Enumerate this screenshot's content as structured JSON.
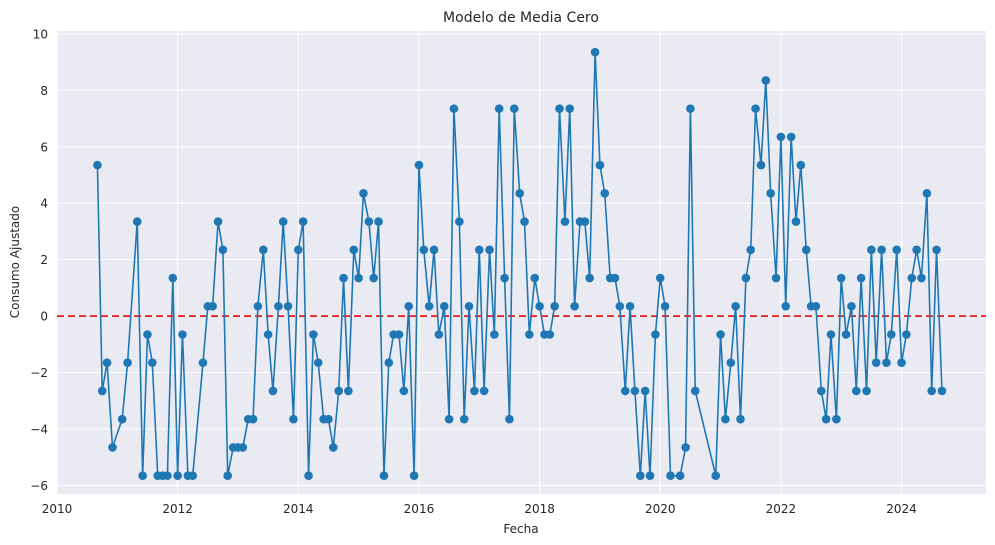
{
  "chart_data": {
    "type": "line",
    "title": "Modelo de Media Cero",
    "xlabel": "Fecha",
    "ylabel": "Consumo Ajustado",
    "xlim": [
      2010.0,
      2025.4
    ],
    "ylim": [
      -6.3,
      10.1
    ],
    "x_ticks": [
      2010,
      2012,
      2014,
      2016,
      2018,
      2020,
      2022,
      2024
    ],
    "x_tick_labels": [
      "2010",
      "2012",
      "2014",
      "2016",
      "2018",
      "2020",
      "2022",
      "2024"
    ],
    "y_ticks": [
      -6,
      -4,
      -2,
      0,
      2,
      4,
      6,
      8,
      10
    ],
    "y_tick_labels": [
      "−6",
      "−4",
      "−2",
      "0",
      "2",
      "4",
      "6",
      "8",
      "10"
    ],
    "grid": true,
    "reference_line": {
      "y": 0,
      "style": "dashed",
      "color": "#e8191b"
    },
    "series": [
      {
        "color": "#1f77b4",
        "marker": "circle",
        "x": [
          2010.67,
          2010.75,
          2010.83,
          2010.92,
          2011.08,
          2011.17,
          2011.33,
          2011.42,
          2011.5,
          2011.58,
          2011.67,
          2011.75,
          2011.83,
          2011.92,
          2012.0,
          2012.08,
          2012.17,
          2012.25,
          2012.42,
          2012.5,
          2012.58,
          2012.67,
          2012.75,
          2012.83,
          2012.92,
          2013.0,
          2013.08,
          2013.17,
          2013.25,
          2013.33,
          2013.42,
          2013.5,
          2013.58,
          2013.67,
          2013.75,
          2013.83,
          2013.92,
          2014.0,
          2014.08,
          2014.17,
          2014.25,
          2014.33,
          2014.42,
          2014.5,
          2014.58,
          2014.67,
          2014.75,
          2014.83,
          2014.92,
          2015.0,
          2015.08,
          2015.17,
          2015.25,
          2015.33,
          2015.42,
          2015.5,
          2015.58,
          2015.67,
          2015.75,
          2015.83,
          2015.92,
          2016.0,
          2016.08,
          2016.17,
          2016.25,
          2016.33,
          2016.42,
          2016.5,
          2016.58,
          2016.67,
          2016.75,
          2016.83,
          2016.92,
          2017.0,
          2017.08,
          2017.17,
          2017.25,
          2017.33,
          2017.42,
          2017.5,
          2017.58,
          2017.67,
          2017.75,
          2017.83,
          2017.92,
          2018.0,
          2018.08,
          2018.17,
          2018.25,
          2018.33,
          2018.42,
          2018.5,
          2018.58,
          2018.67,
          2018.75,
          2018.83,
          2018.92,
          2019.0,
          2019.08,
          2019.17,
          2019.25,
          2019.33,
          2019.42,
          2019.5,
          2019.58,
          2019.67,
          2019.75,
          2019.83,
          2019.92,
          2020.0,
          2020.08,
          2020.17,
          2020.33,
          2020.42,
          2020.5,
          2020.58,
          2020.92,
          2021.0,
          2021.08,
          2021.17,
          2021.25,
          2021.33,
          2021.42,
          2021.5,
          2021.58,
          2021.67,
          2021.75,
          2021.83,
          2021.92,
          2022.0,
          2022.08,
          2022.17,
          2022.25,
          2022.33,
          2022.42,
          2022.5,
          2022.58,
          2022.67,
          2022.75,
          2022.83,
          2022.92,
          2023.0,
          2023.08,
          2023.17,
          2023.25,
          2023.33,
          2023.42,
          2023.5,
          2023.58,
          2023.67,
          2023.75,
          2023.83,
          2023.92,
          2024.0,
          2024.08,
          2024.17,
          2024.25,
          2024.33,
          2024.42,
          2024.5,
          2024.58,
          2024.67
        ],
        "y": [
          5.35,
          -2.65,
          -1.65,
          -4.65,
          -3.65,
          -1.65,
          3.35,
          -5.65,
          -0.65,
          -1.65,
          -5.65,
          -5.65,
          -5.65,
          1.35,
          -5.65,
          -0.65,
          -5.65,
          -5.65,
          -1.65,
          0.35,
          0.35,
          3.35,
          2.35,
          -5.65,
          -4.65,
          -4.65,
          -4.65,
          -3.65,
          -3.65,
          0.35,
          2.35,
          -0.65,
          -2.65,
          0.35,
          3.35,
          0.35,
          -3.65,
          2.35,
          3.35,
          -5.65,
          -0.65,
          -1.65,
          -3.65,
          -3.65,
          -4.65,
          -2.65,
          1.35,
          -2.65,
          2.35,
          1.35,
          4.35,
          3.35,
          1.35,
          3.35,
          -5.65,
          -1.65,
          -0.65,
          -0.65,
          -2.65,
          0.35,
          -5.65,
          5.35,
          2.35,
          0.35,
          2.35,
          -0.65,
          0.35,
          -3.65,
          7.35,
          3.35,
          -3.65,
          0.35,
          -2.65,
          2.35,
          -2.65,
          2.35,
          -0.65,
          7.35,
          1.35,
          -3.65,
          7.35,
          4.35,
          3.35,
          -0.65,
          1.35,
          0.35,
          -0.65,
          -0.65,
          0.35,
          7.35,
          3.35,
          7.35,
          0.35,
          3.35,
          3.35,
          1.35,
          9.35,
          5.35,
          4.35,
          1.35,
          1.35,
          0.35,
          -2.65,
          0.35,
          -2.65,
          -5.65,
          -2.65,
          -5.65,
          -0.65,
          1.35,
          0.35,
          -5.65,
          -5.65,
          -4.65,
          7.35,
          -2.65,
          -5.65,
          -0.65,
          -3.65,
          -1.65,
          0.35,
          -3.65,
          1.35,
          2.35,
          7.35,
          5.35,
          8.35,
          4.35,
          1.35,
          6.35,
          0.35,
          6.35,
          3.35,
          5.35,
          2.35,
          0.35,
          0.35,
          -2.65,
          -3.65,
          -0.65,
          -3.65,
          1.35,
          -0.65,
          0.35,
          -2.65,
          1.35,
          -2.65,
          2.35,
          -1.65,
          2.35,
          -1.65,
          -0.65,
          2.35,
          -1.65,
          -0.65,
          1.35,
          2.35,
          1.35,
          4.35,
          -2.65,
          2.35,
          -2.65
        ]
      }
    ]
  }
}
